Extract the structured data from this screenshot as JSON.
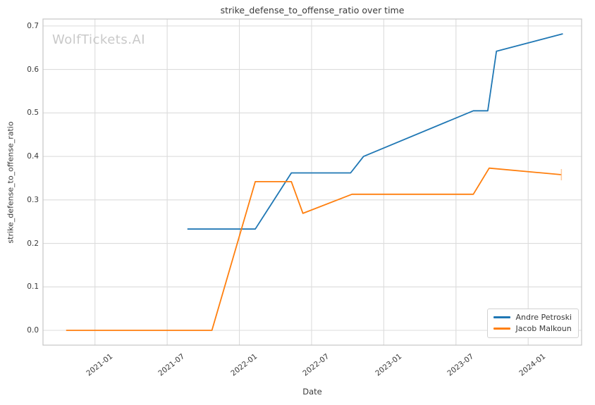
{
  "watermark": {
    "text": "WolfTickets.AI",
    "color": "#c9c9c9"
  },
  "chart_data": {
    "type": "line",
    "title": "strike_defense_to_offense_ratio over time",
    "xlabel": "Date",
    "ylabel": "strike_defense_to_offense_ratio",
    "grid": true,
    "legend_position": "lower right",
    "xlim": [
      2020.64,
      2024.37
    ],
    "ylim": [
      -0.034,
      0.716
    ],
    "xticks": {
      "values": [
        2021.0,
        2021.5,
        2022.0,
        2022.5,
        2023.0,
        2023.5,
        2024.0
      ],
      "labels": [
        "2021-01",
        "2021-07",
        "2022-01",
        "2022-07",
        "2023-01",
        "2023-07",
        "2024-01"
      ]
    },
    "yticks": {
      "values": [
        0.0,
        0.1,
        0.2,
        0.3,
        0.4,
        0.5,
        0.6,
        0.7
      ],
      "labels": [
        "0.0",
        "0.1",
        "0.2",
        "0.3",
        "0.4",
        "0.5",
        "0.6",
        "0.7"
      ]
    },
    "series": [
      {
        "name": "Andre Petroski",
        "color": "#1f77b4",
        "points": [
          [
            2021.64,
            0.233
          ],
          [
            2022.11,
            0.233
          ],
          [
            2022.36,
            0.362
          ],
          [
            2022.77,
            0.362
          ],
          [
            2022.86,
            0.4
          ],
          [
            2023.62,
            0.505
          ],
          [
            2023.72,
            0.505
          ],
          [
            2023.78,
            0.642
          ],
          [
            2024.24,
            0.682
          ]
        ]
      },
      {
        "name": "Jacob Malkoun",
        "color": "#ff7f0e",
        "end_tick": true,
        "end_tick_color": "#ffc08a",
        "points": [
          [
            2020.8,
            0.0
          ],
          [
            2021.81,
            0.0
          ],
          [
            2022.11,
            0.342
          ],
          [
            2022.36,
            0.342
          ],
          [
            2022.44,
            0.269
          ],
          [
            2022.78,
            0.313
          ],
          [
            2023.62,
            0.313
          ],
          [
            2023.73,
            0.373
          ],
          [
            2024.23,
            0.358
          ]
        ]
      }
    ],
    "colors": {
      "grid": "#dcdcdc",
      "frame": "#c6c6c6",
      "text": "#3a3a3a"
    }
  }
}
